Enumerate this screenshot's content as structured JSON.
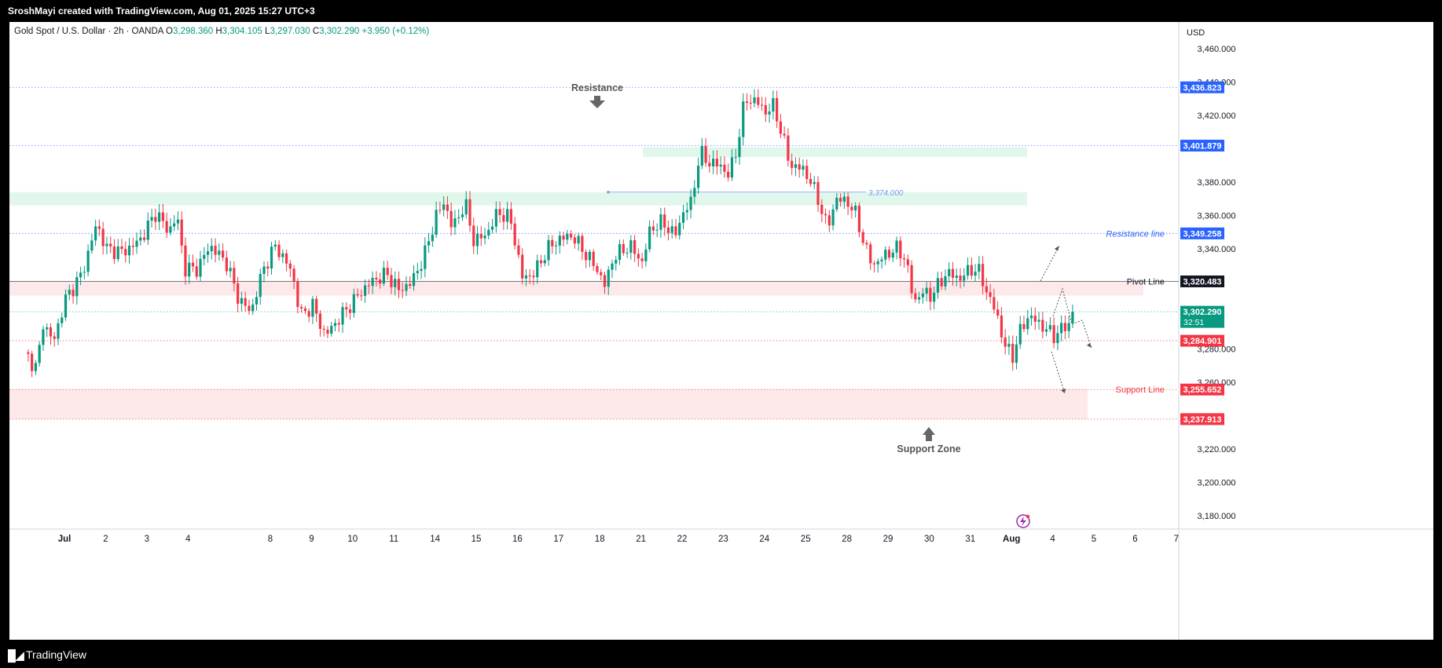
{
  "header": {
    "credit": "SroshMayi created with TradingView.com, Aug 01, 2025 15:27 UTC+3"
  },
  "footer": {
    "brand": "TradingView"
  },
  "legend": {
    "symbol": "Gold Spot / U.S. Dollar · 2h · OANDA",
    "o_label": "O",
    "o": "3,298.360",
    "h_label": "H",
    "h": "3,304.105",
    "l_label": "L",
    "l": "3,297.030",
    "c_label": "C",
    "c": "3,302.290",
    "change": "+3.950 (+0.12%)"
  },
  "chart_data": {
    "type": "candlestick",
    "currency": "USD",
    "y_range": [
      3172,
      3476
    ],
    "y_ticks": [
      3460,
      3440,
      3420,
      3380,
      3360,
      3340,
      3280,
      3260,
      3220,
      3200,
      3180
    ],
    "y_tick_labels": [
      "3,460.000",
      "3,440.000",
      "3,420.000",
      "3,380.000",
      "3,360.000",
      "3,340.000",
      "3,280.000",
      "3,260.000",
      "3,220.000",
      "3,200.000",
      "3,180.000"
    ],
    "x_labels": [
      {
        "label": "Jul",
        "day": 0
      },
      {
        "label": "2",
        "day": 1
      },
      {
        "label": "3",
        "day": 2
      },
      {
        "label": "4",
        "day": 3
      },
      {
        "label": "8",
        "day": 5
      },
      {
        "label": "9",
        "day": 6
      },
      {
        "label": "10",
        "day": 7
      },
      {
        "label": "11",
        "day": 8
      },
      {
        "label": "14",
        "day": 9
      },
      {
        "label": "15",
        "day": 10
      },
      {
        "label": "16",
        "day": 11
      },
      {
        "label": "17",
        "day": 12
      },
      {
        "label": "18",
        "day": 13
      },
      {
        "label": "21",
        "day": 14
      },
      {
        "label": "22",
        "day": 15
      },
      {
        "label": "23",
        "day": 16
      },
      {
        "label": "24",
        "day": 17
      },
      {
        "label": "25",
        "day": 18
      },
      {
        "label": "28",
        "day": 19
      },
      {
        "label": "29",
        "day": 20
      },
      {
        "label": "30",
        "day": 21
      },
      {
        "label": "31",
        "day": 22
      },
      {
        "label": "Aug",
        "day": 23
      },
      {
        "label": "4",
        "day": 24
      },
      {
        "label": "5",
        "day": 25
      },
      {
        "label": "6",
        "day": 26
      },
      {
        "label": "7",
        "day": 27
      }
    ],
    "close_path": [
      {
        "day": -1.2,
        "price": 3278
      },
      {
        "day": -0.9,
        "price": 3268
      },
      {
        "day": -0.75,
        "price": 3296
      },
      {
        "day": -0.5,
        "price": 3284
      },
      {
        "day": -0.2,
        "price": 3310
      },
      {
        "day": 0.2,
        "price": 3325
      },
      {
        "day": 0.55,
        "price": 3355
      },
      {
        "day": 0.8,
        "price": 3340
      },
      {
        "day": 1.2,
        "price": 3338
      },
      {
        "day": 1.6,
        "price": 3345
      },
      {
        "day": 2.0,
        "price": 3362
      },
      {
        "day": 2.3,
        "price": 3350
      },
      {
        "day": 2.5,
        "price": 3360
      },
      {
        "day": 2.7,
        "price": 3328
      },
      {
        "day": 3.0,
        "price": 3328
      },
      {
        "day": 3.3,
        "price": 3342
      },
      {
        "day": 3.7,
        "price": 3332
      },
      {
        "day": 4.0,
        "price": 3310
      },
      {
        "day": 4.3,
        "price": 3302
      },
      {
        "day": 4.6,
        "price": 3328
      },
      {
        "day": 4.9,
        "price": 3342
      },
      {
        "day": 5.3,
        "price": 3326
      },
      {
        "day": 5.5,
        "price": 3300
      },
      {
        "day": 5.8,
        "price": 3306
      },
      {
        "day": 6.1,
        "price": 3288
      },
      {
        "day": 6.5,
        "price": 3300
      },
      {
        "day": 6.9,
        "price": 3312
      },
      {
        "day": 7.2,
        "price": 3320
      },
      {
        "day": 7.6,
        "price": 3325
      },
      {
        "day": 7.9,
        "price": 3315
      },
      {
        "day": 8.2,
        "price": 3320
      },
      {
        "day": 8.5,
        "price": 3335
      },
      {
        "day": 8.8,
        "price": 3360
      },
      {
        "day": 9.0,
        "price": 3368
      },
      {
        "day": 9.2,
        "price": 3352
      },
      {
        "day": 9.5,
        "price": 3368
      },
      {
        "day": 9.7,
        "price": 3345
      },
      {
        "day": 10.0,
        "price": 3348
      },
      {
        "day": 10.3,
        "price": 3362
      },
      {
        "day": 10.6,
        "price": 3358
      },
      {
        "day": 10.9,
        "price": 3322
      },
      {
        "day": 11.2,
        "price": 3326
      },
      {
        "day": 11.5,
        "price": 3340
      },
      {
        "day": 11.8,
        "price": 3346
      },
      {
        "day": 12.1,
        "price": 3348
      },
      {
        "day": 12.4,
        "price": 3338
      },
      {
        "day": 12.7,
        "price": 3328
      },
      {
        "day": 12.9,
        "price": 3318
      },
      {
        "day": 13.1,
        "price": 3335
      },
      {
        "day": 13.5,
        "price": 3342
      },
      {
        "day": 13.8,
        "price": 3332
      },
      {
        "day": 14.0,
        "price": 3352
      },
      {
        "day": 14.3,
        "price": 3356
      },
      {
        "day": 14.6,
        "price": 3348
      },
      {
        "day": 14.8,
        "price": 3362
      },
      {
        "day": 15.0,
        "price": 3368
      },
      {
        "day": 15.2,
        "price": 3398
      },
      {
        "day": 15.4,
        "price": 3392
      },
      {
        "day": 15.7,
        "price": 3390
      },
      {
        "day": 15.9,
        "price": 3384
      },
      {
        "day": 16.1,
        "price": 3400
      },
      {
        "day": 16.3,
        "price": 3430
      },
      {
        "day": 16.6,
        "price": 3428
      },
      {
        "day": 16.8,
        "price": 3422
      },
      {
        "day": 17.0,
        "price": 3426
      },
      {
        "day": 17.2,
        "price": 3408
      },
      {
        "day": 17.4,
        "price": 3390
      },
      {
        "day": 17.7,
        "price": 3388
      },
      {
        "day": 17.9,
        "price": 3380
      },
      {
        "day": 18.1,
        "price": 3368
      },
      {
        "day": 18.3,
        "price": 3352
      },
      {
        "day": 18.5,
        "price": 3370
      },
      {
        "day": 18.8,
        "price": 3368
      },
      {
        "day": 19.0,
        "price": 3360
      },
      {
        "day": 19.2,
        "price": 3342
      },
      {
        "day": 19.4,
        "price": 3330
      },
      {
        "day": 19.6,
        "price": 3334
      },
      {
        "day": 19.8,
        "price": 3338
      },
      {
        "day": 20.0,
        "price": 3340
      },
      {
        "day": 20.2,
        "price": 3334
      },
      {
        "day": 20.4,
        "price": 3308
      },
      {
        "day": 20.6,
        "price": 3314
      },
      {
        "day": 20.8,
        "price": 3312
      },
      {
        "day": 21.0,
        "price": 3318
      },
      {
        "day": 21.2,
        "price": 3326
      },
      {
        "day": 21.5,
        "price": 3322
      },
      {
        "day": 21.8,
        "price": 3328
      },
      {
        "day": 22.0,
        "price": 3326
      },
      {
        "day": 22.2,
        "price": 3312
      },
      {
        "day": 22.4,
        "price": 3302
      },
      {
        "day": 22.6,
        "price": 3282
      },
      {
        "day": 22.8,
        "price": 3276
      },
      {
        "day": 23.0,
        "price": 3292
      },
      {
        "day": 23.2,
        "price": 3300
      },
      {
        "day": 23.4,
        "price": 3296
      },
      {
        "day": 23.6,
        "price": 3292
      },
      {
        "day": 23.8,
        "price": 3288
      },
      {
        "day": 24.0,
        "price": 3292
      },
      {
        "day": 24.2,
        "price": 3296
      },
      {
        "day": 24.3,
        "price": 3302.29
      }
    ],
    "price_levels": [
      {
        "label": "3,436.823",
        "price": 3436.823,
        "color": "#2962ff"
      },
      {
        "label": "3,401.879",
        "price": 3401.879,
        "color": "#2962ff"
      },
      {
        "label": "3,349.258",
        "price": 3349.258,
        "color": "#2962ff"
      },
      {
        "label": "3,320.483",
        "price": 3320.483,
        "color": "#131722"
      },
      {
        "label": "3,302.290",
        "price": 3302.29,
        "color": "#089981",
        "sub": "32:51"
      },
      {
        "label": "3,284.901",
        "price": 3284.901,
        "color": "#f23645"
      },
      {
        "label": "3,255.652",
        "price": 3255.652,
        "color": "#f23645"
      },
      {
        "label": "3,237.913",
        "price": 3237.913,
        "color": "#f23645"
      }
    ],
    "annotations": {
      "resistance": "Resistance",
      "support_zone": "Support Zone",
      "resistance_line": "Resistance line",
      "pivot_line": "Pivot Line",
      "support_line": "Support Line",
      "level_3374": "3,374.000"
    },
    "zones": [
      {
        "kind": "green",
        "from": 3366,
        "to": 3374
      },
      {
        "kind": "green",
        "from": 3395,
        "to": 3401
      },
      {
        "kind": "red",
        "from": 3312,
        "to": 3320.5
      },
      {
        "kind": "red",
        "from": 3238,
        "to": 3256
      }
    ],
    "colors": {
      "up": "#089981",
      "down": "#f23645",
      "zone_green": "#e2f7ec",
      "zone_red": "#fde8ea"
    }
  }
}
